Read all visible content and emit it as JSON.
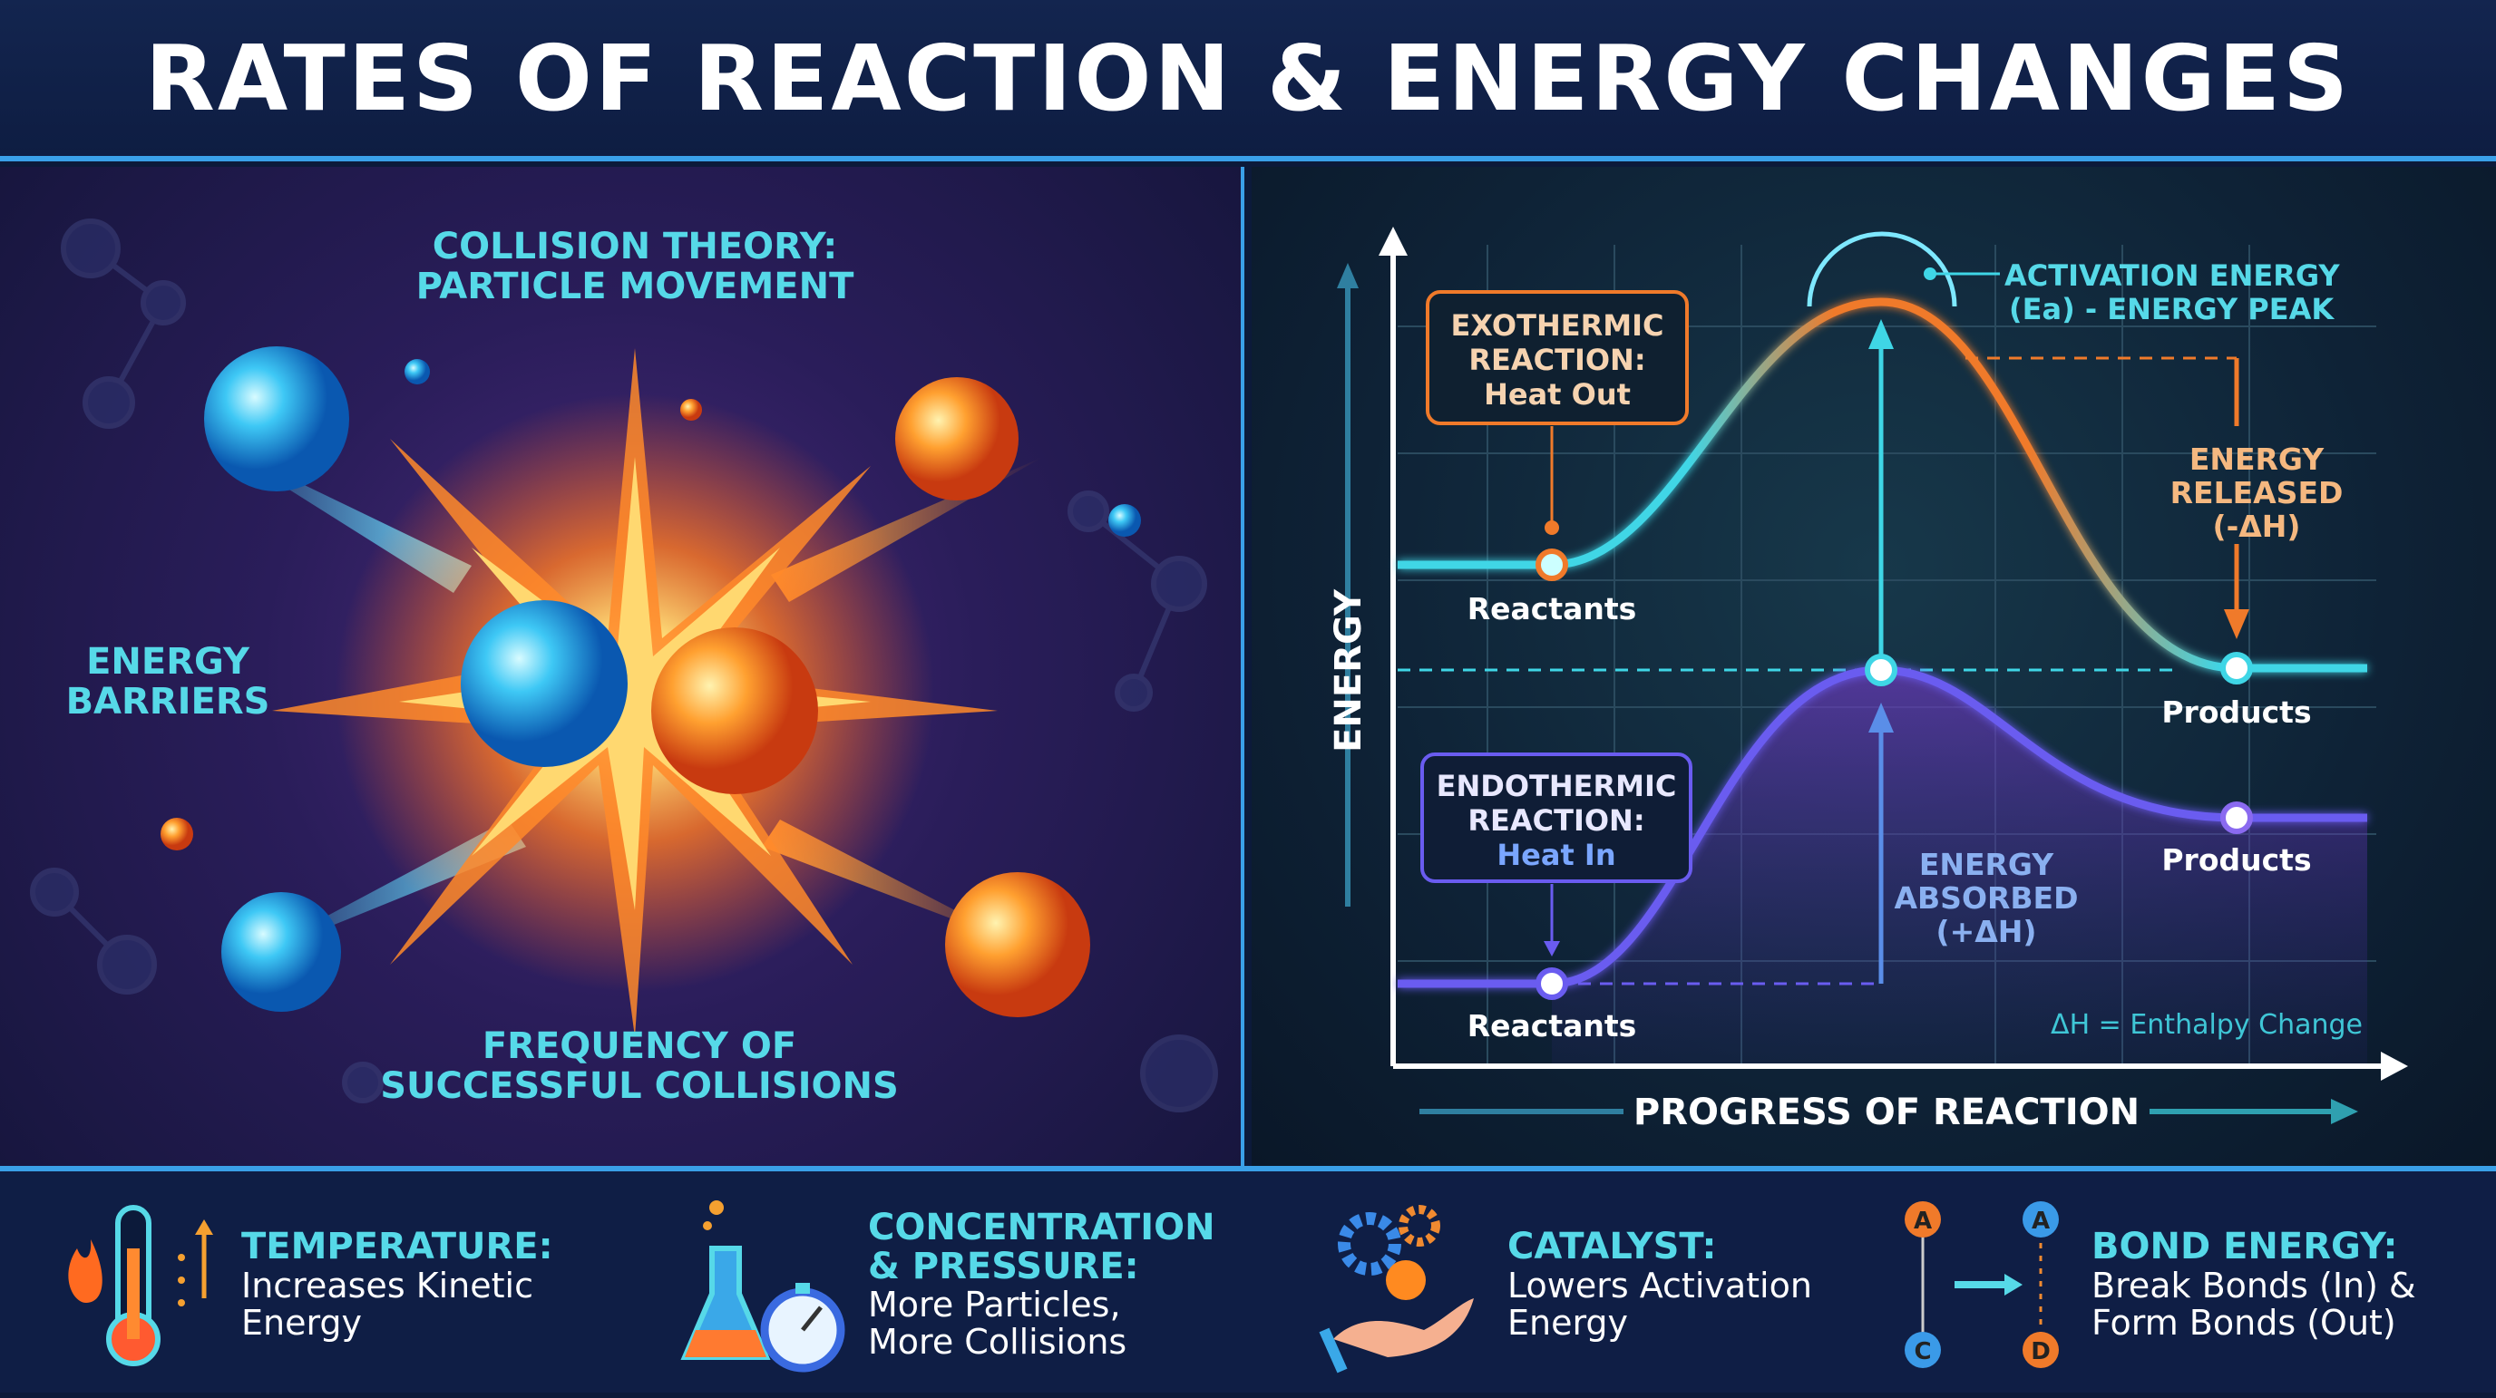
{
  "title": "RATES OF REACTION & ENERGY CHANGES",
  "left_panel": {
    "collision_theory": "COLLISION THEORY:",
    "particle_movement": "PARTICLE MOVEMENT",
    "energy": "ENERGY",
    "barriers": "BARRIERS",
    "frequency": "FREQUENCY OF",
    "successful": "SUCCESSFUL COLLISIONS"
  },
  "energy_diagram": {
    "y_axis": "ENERGY",
    "x_axis": "PROGRESS OF REACTION",
    "activation_line1": "ACTIVATION ENERGY",
    "activation_line2": "(Ea) - ENERGY PEAK",
    "exo_box": {
      "line1": "EXOTHERMIC",
      "line2": "REACTION:",
      "line3": "Heat Out"
    },
    "endo_box": {
      "line1": "ENDOTHERMIC",
      "line2": "REACTION:",
      "line3": "Heat In"
    },
    "released": {
      "line1": "ENERGY",
      "line2": "RELEASED",
      "line3": "(-ΔH)"
    },
    "absorbed": {
      "line1": "ENERGY",
      "line2": "ABSORBED",
      "line3": "(+ΔH)"
    },
    "exo_reactants": "Reactants",
    "exo_products": "Products",
    "endo_reactants": "Reactants",
    "endo_products": "Products",
    "legend": "ΔH = Enthalpy Change",
    "colors": {
      "exo": "#f07a2a",
      "cyan": "#3fd6e6",
      "endo": "#6a5cf0"
    }
  },
  "factors": [
    {
      "heading": "TEMPERATURE:",
      "body1": "Increases Kinetic",
      "body2": "Energy",
      "icon": "thermometer-icon"
    },
    {
      "heading": "CONCENTRATION",
      "heading2": "& PRESSURE:",
      "body1": "More Particles,",
      "body2": "More Collisions",
      "icon": "flask-stopwatch-icon"
    },
    {
      "heading": "CATALYST:",
      "body1": "Lowers Activation",
      "body2": "Energy",
      "icon": "gears-hand-icon"
    },
    {
      "heading": "BOND ENERGY:",
      "body1": "Break Bonds (In) &",
      "body2": "Form Bonds (Out)",
      "icon": "bond-icon",
      "atoms": [
        "A",
        "C",
        "A",
        "D"
      ]
    }
  ]
}
